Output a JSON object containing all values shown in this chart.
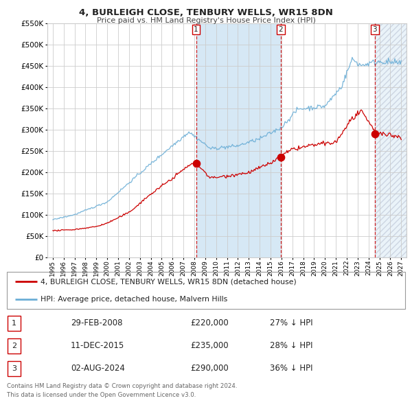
{
  "title": "4, BURLEIGH CLOSE, TENBURY WELLS, WR15 8DN",
  "subtitle": "Price paid vs. HM Land Registry's House Price Index (HPI)",
  "legend_line1": "4, BURLEIGH CLOSE, TENBURY WELLS, WR15 8DN (detached house)",
  "legend_line2": "HPI: Average price, detached house, Malvern Hills",
  "transactions": [
    {
      "num": 1,
      "date": "29-FEB-2008",
      "price": 220000,
      "pct": "27%",
      "dir": "↓"
    },
    {
      "num": 2,
      "date": "11-DEC-2015",
      "price": 235000,
      "pct": "28%",
      "dir": "↓"
    },
    {
      "num": 3,
      "date": "02-AUG-2024",
      "price": 290000,
      "pct": "36%",
      "dir": "↓"
    }
  ],
  "footer": [
    "Contains HM Land Registry data © Crown copyright and database right 2024.",
    "This data is licensed under the Open Government Licence v3.0."
  ],
  "hpi_color": "#6baed6",
  "price_color": "#cc0000",
  "dot_color": "#cc0000",
  "vline_color": "#cc0000",
  "shade_color": "#d6e8f5",
  "ylim": [
    0,
    550000
  ],
  "yticks": [
    0,
    50000,
    100000,
    150000,
    200000,
    250000,
    300000,
    350000,
    400000,
    450000,
    500000,
    550000
  ],
  "xlim_start": 1994.5,
  "xlim_end": 2027.5,
  "transaction_dates_decimal": [
    2008.16,
    2015.94,
    2024.58
  ],
  "background_color": "#ffffff"
}
